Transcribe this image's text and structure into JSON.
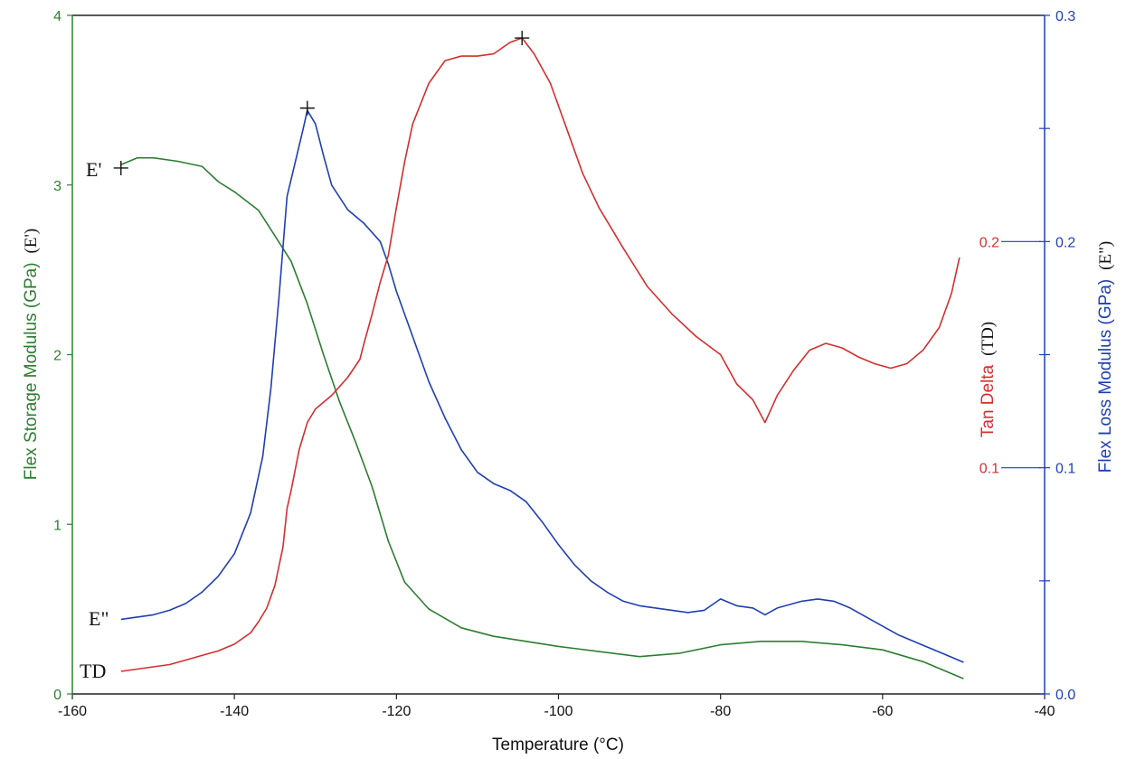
{
  "chart_data": {
    "type": "line",
    "grid": false,
    "x_axis": {
      "label": "Temperature (°C)",
      "range": [
        -160,
        -40
      ],
      "ticks": [
        -160,
        -140,
        -120,
        -100,
        -80,
        -60,
        -40
      ],
      "tick_labels": [
        "-160",
        "-140",
        "-120",
        "-100",
        "-80",
        "-60",
        "-40"
      ]
    },
    "left_axis": {
      "label": "Flex Storage Modulus (GPa)",
      "label_suffix": "(E')",
      "color": "#2e7d32",
      "range": [
        0,
        4
      ],
      "ticks": [
        0,
        1,
        2,
        3,
        4
      ],
      "tick_labels": [
        "0",
        "1",
        "2",
        "3",
        "4"
      ]
    },
    "tan_axis": {
      "label": "Tan Delta",
      "label_suffix": "(TD)",
      "color": "#d32f2f",
      "range": [
        0,
        0.3
      ],
      "ticks": [
        0.1,
        0.2
      ],
      "tick_labels": [
        "0.1",
        "0.2"
      ]
    },
    "right_axis": {
      "label": "Flex Loss Modulus (GPa)",
      "label_suffix": "(E\")",
      "color": "#1f3fb0",
      "range": [
        0,
        0.3
      ],
      "ticks": [
        0.0,
        0.1,
        0.2,
        0.3
      ],
      "tick_labels": [
        "0.0",
        "0.1",
        "0.2",
        "0.3"
      ]
    },
    "series": [
      {
        "name": "E'",
        "axis": "left",
        "color": "#2e7d32",
        "x": [
          -154,
          -152,
          -150,
          -147,
          -144,
          -142,
          -140,
          -137,
          -135,
          -133,
          -131,
          -129,
          -127,
          -125,
          -123,
          -121,
          -119,
          -116,
          -112,
          -108,
          -104,
          -100,
          -95,
          -90,
          -85,
          -80,
          -75,
          -70,
          -65,
          -60,
          -55,
          -50
        ],
        "y": [
          3.12,
          3.16,
          3.16,
          3.14,
          3.11,
          3.02,
          2.96,
          2.85,
          2.7,
          2.55,
          2.3,
          2.0,
          1.72,
          1.48,
          1.22,
          0.9,
          0.66,
          0.5,
          0.39,
          0.34,
          0.31,
          0.28,
          0.25,
          0.22,
          0.24,
          0.29,
          0.31,
          0.31,
          0.29,
          0.26,
          0.19,
          0.09
        ]
      },
      {
        "name": "E\"",
        "axis": "right",
        "color": "#1f3fb0",
        "x": [
          -154,
          -152,
          -150,
          -148,
          -146,
          -144,
          -142,
          -140,
          -138,
          -136.5,
          -135.5,
          -134.5,
          -133.5,
          -132.5,
          -131.5,
          -131,
          -130,
          -129,
          -128,
          -126,
          -124,
          -122,
          -121,
          -120,
          -118,
          -116,
          -114,
          -112,
          -110,
          -108,
          -106,
          -104,
          -102,
          -100,
          -98,
          -96,
          -94,
          -92,
          -90,
          -88,
          -86,
          -84,
          -82,
          -80,
          -78,
          -76,
          -74.5,
          -73,
          -70,
          -68,
          -66,
          -64,
          -62,
          -60,
          -58,
          -56,
          -54,
          -52,
          -50
        ],
        "y": [
          0.033,
          0.034,
          0.035,
          0.037,
          0.04,
          0.045,
          0.052,
          0.062,
          0.08,
          0.105,
          0.135,
          0.175,
          0.22,
          0.235,
          0.25,
          0.258,
          0.252,
          0.238,
          0.225,
          0.214,
          0.208,
          0.2,
          0.19,
          0.178,
          0.158,
          0.138,
          0.122,
          0.108,
          0.098,
          0.093,
          0.09,
          0.085,
          0.076,
          0.066,
          0.057,
          0.05,
          0.045,
          0.041,
          0.039,
          0.038,
          0.037,
          0.036,
          0.037,
          0.042,
          0.039,
          0.038,
          0.035,
          0.038,
          0.041,
          0.042,
          0.041,
          0.038,
          0.034,
          0.03,
          0.026,
          0.023,
          0.02,
          0.017,
          0.014
        ]
      },
      {
        "name": "TD",
        "axis": "tan",
        "color": "#d32f2f",
        "x": [
          -154,
          -152,
          -150,
          -148,
          -146,
          -144,
          -142,
          -140,
          -138,
          -137,
          -136,
          -135,
          -134,
          -133.5,
          -133,
          -132,
          -131,
          -130,
          -128,
          -126,
          -124.5,
          -124,
          -123,
          -122,
          -121,
          -120,
          -119,
          -118,
          -116,
          -114,
          -112,
          -110,
          -108,
          -106,
          -104.5,
          -103,
          -101,
          -99,
          -97,
          -95,
          -92,
          -89,
          -86,
          -83,
          -80,
          -78,
          -76,
          -74.5,
          -73,
          -71,
          -69,
          -67,
          -65,
          -63,
          -61,
          -59,
          -57,
          -55,
          -53,
          -51.5,
          -50.5
        ],
        "y": [
          0.01,
          0.011,
          0.012,
          0.013,
          0.015,
          0.017,
          0.019,
          0.022,
          0.027,
          0.032,
          0.038,
          0.048,
          0.065,
          0.082,
          0.09,
          0.108,
          0.12,
          0.126,
          0.132,
          0.14,
          0.148,
          0.155,
          0.168,
          0.182,
          0.194,
          0.215,
          0.235,
          0.252,
          0.27,
          0.28,
          0.282,
          0.282,
          0.283,
          0.288,
          0.29,
          0.283,
          0.27,
          0.25,
          0.23,
          0.215,
          0.197,
          0.18,
          0.168,
          0.158,
          0.15,
          0.137,
          0.13,
          0.12,
          0.132,
          0.143,
          0.152,
          0.155,
          0.153,
          0.149,
          0.146,
          0.144,
          0.146,
          0.152,
          0.162,
          0.177,
          0.193
        ]
      }
    ],
    "markers": [
      {
        "series": "E'",
        "x": -154,
        "y": 3.1,
        "axis": "left",
        "symbol": "+"
      },
      {
        "series": "E\"",
        "x": -131,
        "y": 0.259,
        "axis": "right",
        "symbol": "+"
      },
      {
        "series": "TD",
        "x": -104.5,
        "y": 0.29,
        "axis": "tan",
        "symbol": "+"
      }
    ],
    "curve_labels": [
      {
        "text": "E'",
        "series": "E'"
      },
      {
        "text": "E\"",
        "series": "E\""
      },
      {
        "text": "TD",
        "series": "TD"
      }
    ]
  }
}
